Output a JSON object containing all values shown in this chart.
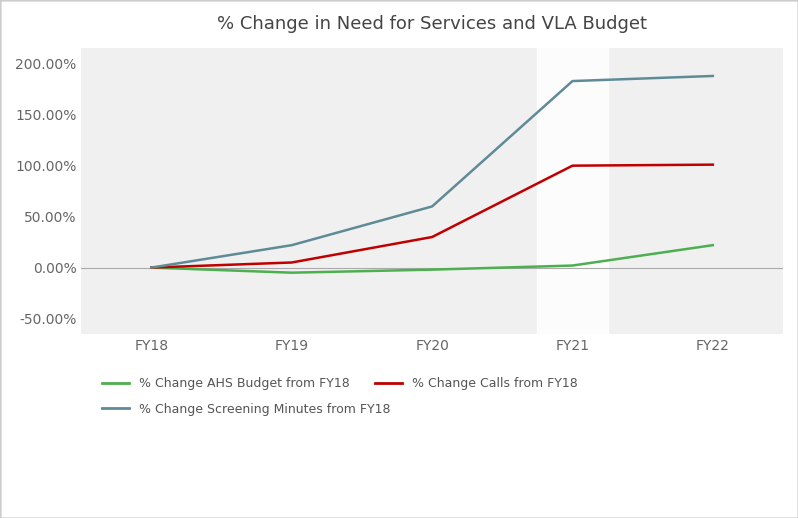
{
  "title": "% Change in Need for Services and VLA Budget",
  "x_labels": [
    "FY18",
    "FY19",
    "FY20",
    "FY21",
    "FY22"
  ],
  "x_values": [
    0,
    1,
    2,
    3,
    4
  ],
  "series": [
    {
      "label": "% Change AHS Budget from FY18",
      "color": "#4CAF50",
      "values": [
        0.0,
        -0.05,
        -0.02,
        0.02,
        0.22
      ]
    },
    {
      "label": "% Change Calls from FY18",
      "color": "#C00000",
      "values": [
        0.0,
        0.05,
        0.3,
        1.0,
        1.01
      ]
    },
    {
      "label": "% Change Screening Minutes from FY18",
      "color": "#5F8B96",
      "values": [
        0.0,
        0.22,
        0.6,
        1.83,
        1.88
      ]
    }
  ],
  "ylim": [
    -0.65,
    2.15
  ],
  "yticks": [
    -0.5,
    0.0,
    0.5,
    1.0,
    1.5,
    2.0
  ],
  "ytick_labels": [
    "-50.00%",
    "0.00%",
    "50.00%",
    "100.00%",
    "150.00%",
    "200.00%"
  ],
  "plot_bg_color": "#F0F0F0",
  "outer_bg_color": "#FFFFFF",
  "vline_x": 3,
  "vline_color": "#E0E0E0",
  "line_width": 1.8,
  "title_fontsize": 13,
  "tick_fontsize": 10,
  "legend_fontsize": 9,
  "fig_width": 7.98,
  "fig_height": 5.18,
  "legend_items": [
    {
      "label": "% Change AHS Budget from FY18",
      "color": "#4CAF50"
    },
    {
      "label": "% Change Calls from FY18",
      "color": "#C00000"
    },
    {
      "label": "% Change Screening Minutes from FY18",
      "color": "#5F8B96"
    }
  ]
}
